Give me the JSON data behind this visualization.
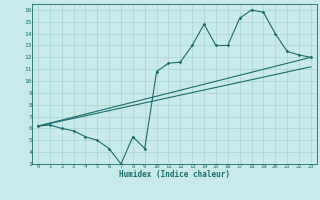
{
  "title": "",
  "xlabel": "Humidex (Indice chaleur)",
  "ylabel": "",
  "bg_color": "#c8eaea",
  "line_color": "#1a6b6b",
  "grid_color": "#a8d4d4",
  "xlim": [
    -0.5,
    23.5
  ],
  "ylim": [
    3,
    16.5
  ],
  "xticks": [
    0,
    1,
    2,
    3,
    4,
    5,
    6,
    7,
    8,
    9,
    10,
    11,
    12,
    13,
    14,
    15,
    16,
    17,
    18,
    19,
    20,
    21,
    22,
    23
  ],
  "yticks": [
    3,
    4,
    5,
    6,
    7,
    8,
    9,
    10,
    11,
    12,
    13,
    14,
    15,
    16
  ],
  "series1_x": [
    0,
    1,
    2,
    3,
    4,
    5,
    6,
    7,
    8,
    9,
    10,
    11,
    12,
    13,
    14,
    15,
    16,
    17,
    18,
    19,
    20,
    21,
    22,
    23
  ],
  "series1_y": [
    6.2,
    6.3,
    6.0,
    5.8,
    5.3,
    5.0,
    4.3,
    3.0,
    5.3,
    4.3,
    10.8,
    11.5,
    11.6,
    13.0,
    14.8,
    13.0,
    13.0,
    15.3,
    16.0,
    15.8,
    14.0,
    12.5,
    12.2,
    12.0
  ],
  "series2_x": [
    0,
    23
  ],
  "series2_y": [
    6.2,
    12.0
  ],
  "series3_x": [
    0,
    23
  ],
  "series3_y": [
    6.2,
    11.2
  ]
}
